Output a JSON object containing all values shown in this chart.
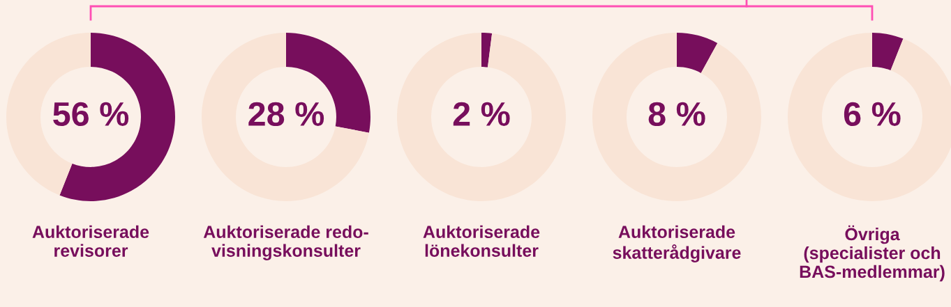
{
  "chart_data": [
    {
      "type": "donut",
      "title": "Auktoriserade\nrevisorer",
      "categories": [
        null,
        null
      ],
      "values": [
        56,
        44
      ],
      "colors": [
        "#770e5c",
        "#f9e4d6"
      ],
      "value_labels": [
        "56 %",
        null
      ]
    },
    {
      "type": "donut",
      "title": "Auktoriserade redo-\nvisningskonsulter",
      "categories": [
        null,
        null
      ],
      "values": [
        28,
        72
      ],
      "colors": [
        "#770e5c",
        "#f9e4d6"
      ],
      "value_labels": [
        "28 %",
        null
      ]
    },
    {
      "type": "donut",
      "title": "Auktoriserade\nlönekonsulter",
      "categories": [
        null,
        null
      ],
      "values": [
        2,
        98
      ],
      "colors": [
        "#770e5c",
        "#f9e4d6"
      ],
      "value_labels": [
        "2 %",
        null
      ]
    },
    {
      "type": "donut",
      "title": "Auktoriserade\nskatterådgivare",
      "categories": [
        null,
        null
      ],
      "values": [
        8,
        92
      ],
      "colors": [
        "#770e5c",
        "#f9e4d6"
      ],
      "value_labels": [
        "8 %",
        null
      ]
    },
    {
      "type": "donut",
      "title": "Övriga\n(specialister och\nBAS-medlemmar)",
      "categories": [
        null,
        null
      ],
      "values": [
        6,
        94
      ],
      "colors": [
        "#770e5c",
        "#f9e4d6"
      ],
      "value_labels": [
        "6 %",
        null
      ]
    }
  ]
}
